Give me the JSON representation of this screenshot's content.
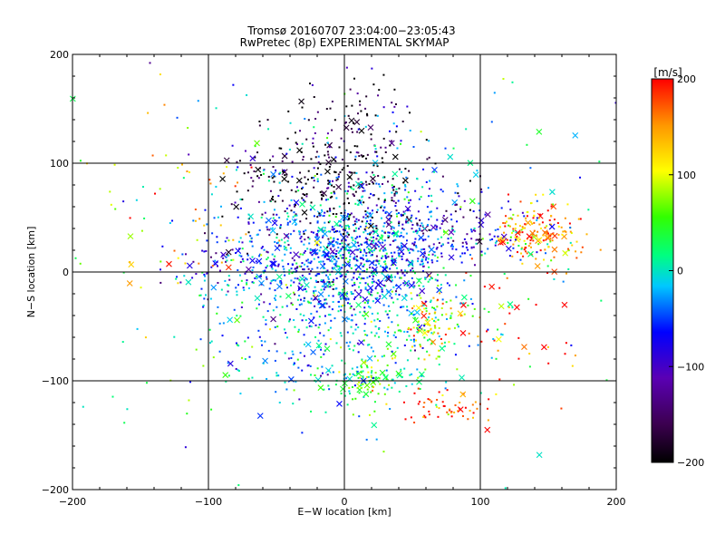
{
  "chart_data": {
    "type": "scatter",
    "title": "Tromsø 20160707 23:04:00−23:05:43",
    "subtitle": "RwPretec (8p) EXPERIMENTAL SKYMAP",
    "xlabel": "E−W location [km]",
    "ylabel": "N−S location [km]",
    "xlim": [
      -200,
      200
    ],
    "ylim": [
      -200,
      200
    ],
    "xticks": [
      -200,
      -100,
      0,
      100,
      200
    ],
    "yticks": [
      -200,
      -100,
      0,
      100,
      200
    ],
    "xtick_labels": [
      "−200",
      "−100",
      "0",
      "100",
      "200"
    ],
    "ytick_labels": [
      "−200",
      "−100",
      "0",
      "100",
      "200"
    ],
    "grid": true,
    "colorbar": {
      "label": "[m/s]",
      "range": [
        -200,
        200
      ],
      "ticks": [
        200,
        100,
        0,
        -100,
        -200
      ],
      "tick_labels": [
        "200",
        "100",
        "0",
        "−100",
        "−200"
      ],
      "colormap": "rainbow (black-purple-blue-cyan-green-yellow-orange-red)"
    },
    "marker_styles": [
      "dot",
      "cross"
    ],
    "clusters": [
      {
        "x": 0,
        "y": 10,
        "sx": 35,
        "sy": 28,
        "v": -40,
        "n": 850
      },
      {
        "x": 5,
        "y": 130,
        "sx": 25,
        "sy": 30,
        "v": -175,
        "n": 90
      },
      {
        "x": -15,
        "y": 80,
        "sx": 35,
        "sy": 25,
        "v": -190,
        "n": 260
      },
      {
        "x": 60,
        "y": 40,
        "sx": 35,
        "sy": 15,
        "v": -110,
        "n": 110
      },
      {
        "x": 140,
        "y": 35,
        "sx": 15,
        "sy": 12,
        "v": 150,
        "n": 170
      },
      {
        "x": 110,
        "y": 35,
        "sx": 20,
        "sy": 10,
        "v": -40,
        "n": 40
      },
      {
        "x": 40,
        "y": 15,
        "sx": 25,
        "sy": 12,
        "v": -60,
        "n": 60
      },
      {
        "x": 65,
        "y": -45,
        "sx": 10,
        "sy": 15,
        "v": 120,
        "n": 70
      },
      {
        "x": 20,
        "y": -100,
        "sx": 15,
        "sy": 12,
        "v": 40,
        "n": 100
      },
      {
        "x": 75,
        "y": -125,
        "sx": 18,
        "sy": 10,
        "v": 190,
        "n": 60
      },
      {
        "x": -80,
        "y": 5,
        "sx": 25,
        "sy": 18,
        "v": -80,
        "n": 80
      },
      {
        "x": -120,
        "y": 40,
        "sx": 35,
        "sy": 50,
        "v": 120,
        "n": 60
      },
      {
        "x": -30,
        "y": -60,
        "sx": 45,
        "sy": 40,
        "v": -20,
        "n": 220
      },
      {
        "x": 40,
        "y": -50,
        "sx": 35,
        "sy": 25,
        "v": 20,
        "n": 160
      },
      {
        "x": 120,
        "y": -50,
        "sx": 25,
        "sy": 30,
        "v": 170,
        "n": 40
      },
      {
        "x": 20,
        "y": 60,
        "sx": 50,
        "sy": 35,
        "v": -30,
        "n": 200
      },
      {
        "x": 0,
        "y": 0,
        "sx": 130,
        "sy": 100,
        "v": 0,
        "n": 200
      }
    ]
  }
}
